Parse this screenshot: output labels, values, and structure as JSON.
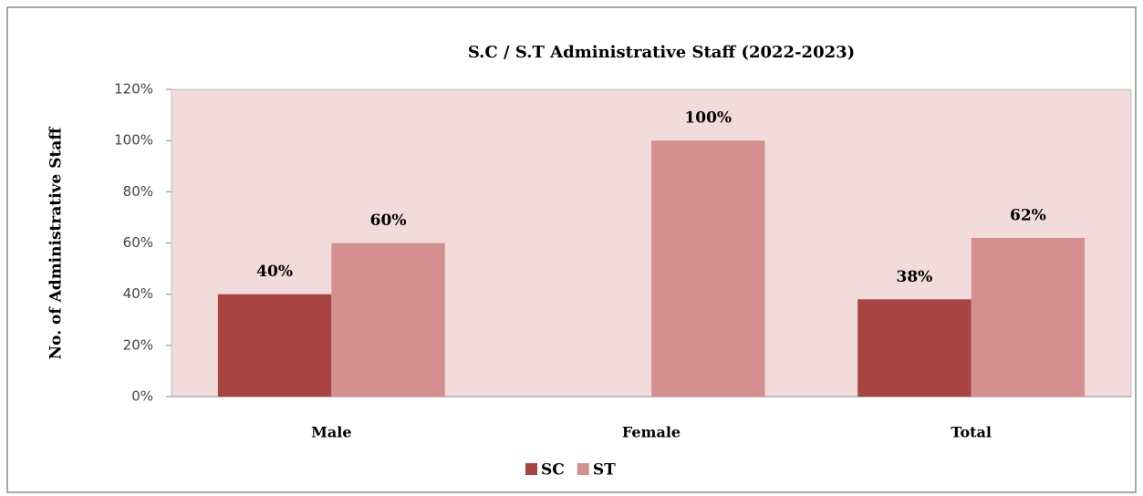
{
  "chart_data": {
    "type": "bar",
    "title": "S.C / S.T Administrative Staff (2022-2023)",
    "y_axis_label": "No. of Administrative Staff",
    "categories": [
      "Male",
      "Female",
      "Total"
    ],
    "series": [
      {
        "name": "SC",
        "color": "#a84542",
        "values": [
          40,
          null,
          38
        ],
        "value_labels": [
          "40%",
          null,
          "38%"
        ]
      },
      {
        "name": "ST",
        "color": "#d4908e",
        "values": [
          60,
          100,
          62
        ],
        "value_labels": [
          "60%",
          "100%",
          "62%"
        ]
      }
    ],
    "ylim": [
      0,
      120
    ],
    "yticks": [
      {
        "value": 0,
        "label": "0%"
      },
      {
        "value": 20,
        "label": "20%"
      },
      {
        "value": 40,
        "label": "40%"
      },
      {
        "value": 60,
        "label": "60%"
      },
      {
        "value": 80,
        "label": "80%"
      },
      {
        "value": 100,
        "label": "100%"
      },
      {
        "value": 120,
        "label": "120%"
      }
    ],
    "legend": "bottom",
    "plot_background": "#f2dcdb"
  }
}
